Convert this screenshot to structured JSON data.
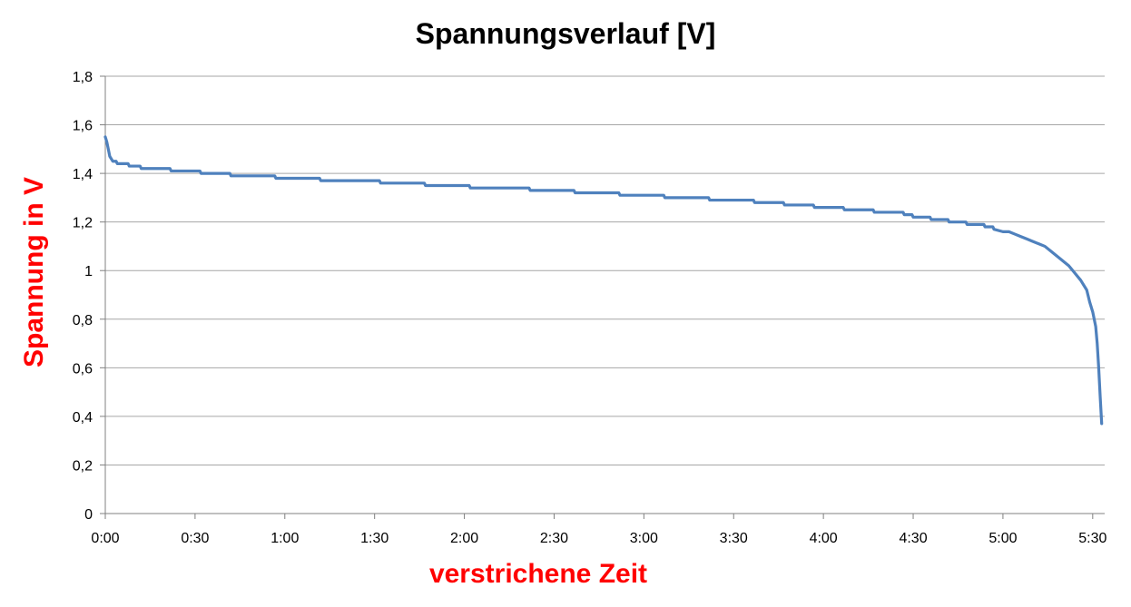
{
  "chart_data": {
    "type": "line",
    "title": "Spannungsverlauf [V]",
    "xlabel": "verstrichene Zeit",
    "ylabel": "Spannung in V",
    "xlim": [
      0,
      334
    ],
    "ylim": [
      0,
      1.8
    ],
    "x_ticks": [
      {
        "value": 0,
        "label": "0:00"
      },
      {
        "value": 30,
        "label": "0:30"
      },
      {
        "value": 60,
        "label": "1:00"
      },
      {
        "value": 90,
        "label": "1:30"
      },
      {
        "value": 120,
        "label": "2:00"
      },
      {
        "value": 150,
        "label": "2:30"
      },
      {
        "value": 180,
        "label": "3:00"
      },
      {
        "value": 210,
        "label": "3:30"
      },
      {
        "value": 240,
        "label": "4:00"
      },
      {
        "value": 270,
        "label": "4:30"
      },
      {
        "value": 300,
        "label": "5:00"
      },
      {
        "value": 330,
        "label": "5:30"
      }
    ],
    "y_ticks": [
      {
        "value": 0,
        "label": "0"
      },
      {
        "value": 0.2,
        "label": "0,2"
      },
      {
        "value": 0.4,
        "label": "0,4"
      },
      {
        "value": 0.6,
        "label": "0,6"
      },
      {
        "value": 0.8,
        "label": "0,8"
      },
      {
        "value": 1.0,
        "label": "1"
      },
      {
        "value": 1.2,
        "label": "1,2"
      },
      {
        "value": 1.4,
        "label": "1,4"
      },
      {
        "value": 1.6,
        "label": "1,6"
      },
      {
        "value": 1.8,
        "label": "1,8"
      }
    ],
    "grid": true,
    "legend": "none",
    "colors": {
      "line": "#4f81bd",
      "axis_titles": "#ff0000",
      "gridlines": "#a6a6a6"
    },
    "series": [
      {
        "x": [
          0,
          0.5,
          1,
          1.5,
          2.5,
          4,
          6,
          8,
          10,
          12,
          14,
          17,
          22,
          27,
          32,
          37,
          42,
          47,
          52,
          57,
          62,
          67,
          72,
          77,
          82,
          87,
          92,
          97,
          102,
          107,
          112,
          117,
          122,
          127,
          132,
          137,
          142,
          147,
          152,
          157,
          162,
          167,
          172,
          177,
          182,
          187,
          192,
          197,
          202,
          207,
          212,
          217,
          222,
          227,
          232,
          237,
          242,
          247,
          252,
          257,
          262,
          267,
          270,
          273,
          276,
          279,
          282,
          285,
          288,
          291,
          294,
          297,
          300,
          302,
          304,
          306,
          308,
          310,
          312,
          314,
          316,
          318,
          320,
          322,
          324,
          326,
          328,
          329,
          330,
          331,
          331.5,
          332,
          332.5,
          333
        ],
        "y": [
          1.55,
          1.53,
          1.5,
          1.47,
          1.45,
          1.44,
          1.44,
          1.43,
          1.43,
          1.42,
          1.42,
          1.42,
          1.41,
          1.41,
          1.4,
          1.4,
          1.39,
          1.39,
          1.39,
          1.38,
          1.38,
          1.38,
          1.37,
          1.37,
          1.37,
          1.37,
          1.36,
          1.36,
          1.36,
          1.35,
          1.35,
          1.35,
          1.34,
          1.34,
          1.34,
          1.34,
          1.33,
          1.33,
          1.33,
          1.32,
          1.32,
          1.32,
          1.31,
          1.31,
          1.31,
          1.3,
          1.3,
          1.3,
          1.29,
          1.29,
          1.29,
          1.28,
          1.28,
          1.27,
          1.27,
          1.26,
          1.26,
          1.25,
          1.25,
          1.24,
          1.24,
          1.23,
          1.22,
          1.22,
          1.21,
          1.21,
          1.2,
          1.2,
          1.19,
          1.19,
          1.18,
          1.17,
          1.16,
          1.16,
          1.15,
          1.14,
          1.13,
          1.12,
          1.11,
          1.1,
          1.08,
          1.06,
          1.04,
          1.02,
          0.99,
          0.96,
          0.92,
          0.87,
          0.83,
          0.77,
          0.7,
          0.6,
          0.48,
          0.37
        ]
      }
    ]
  }
}
